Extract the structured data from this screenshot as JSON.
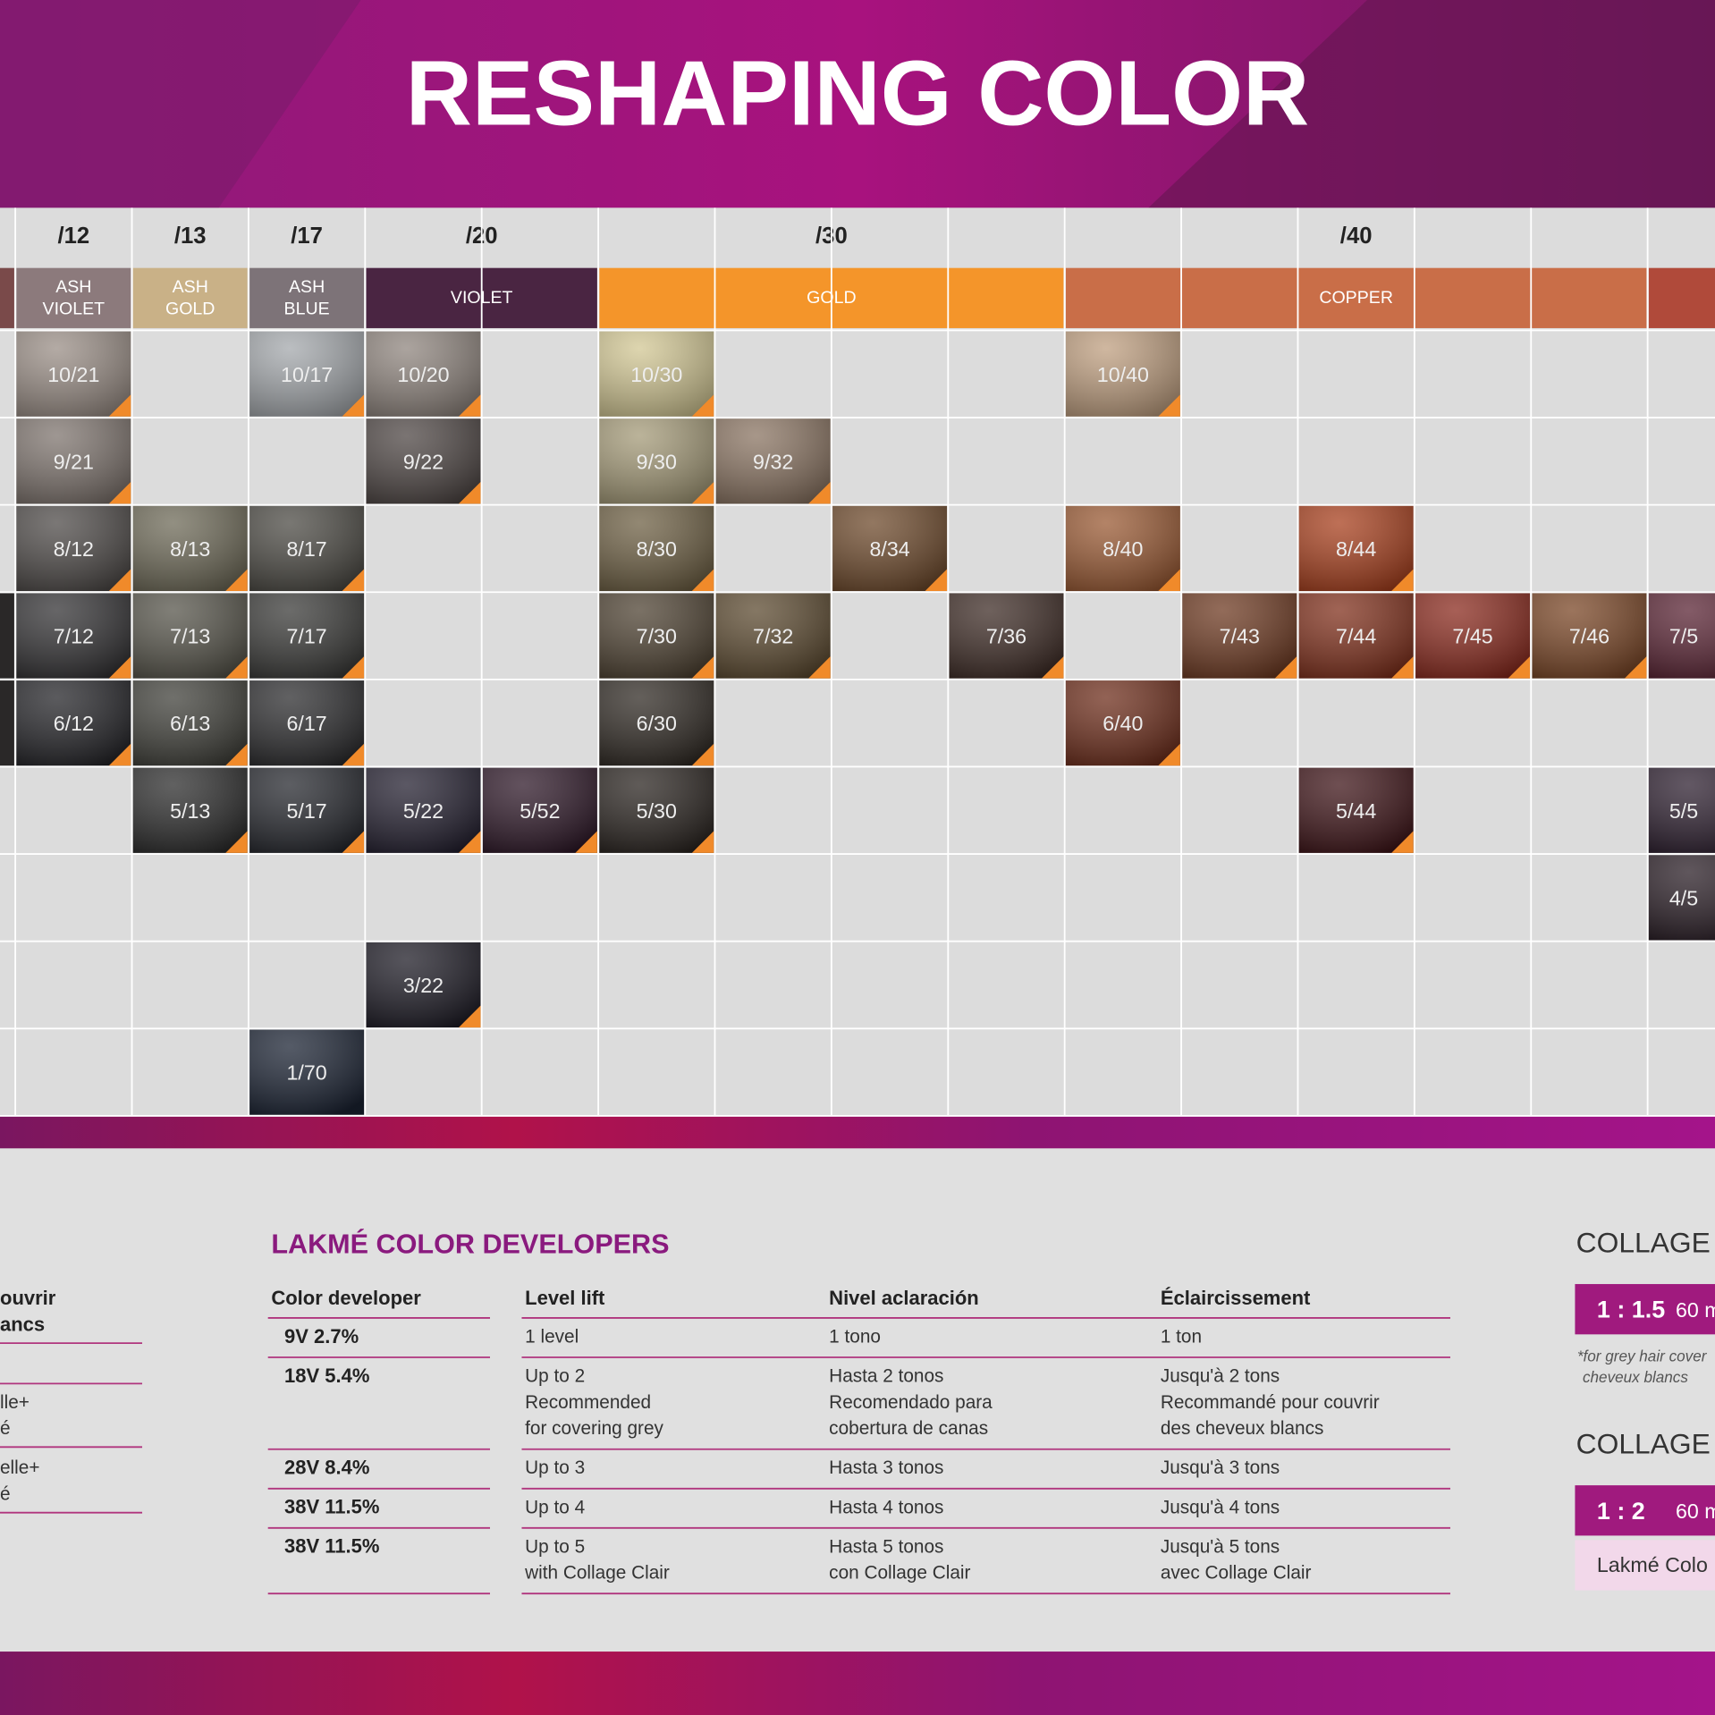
{
  "header": {
    "title": "RESHAPING COLOR"
  },
  "grid": {
    "groups": [
      {
        "code": "/12",
        "family": [
          "ASH",
          "VIOLET"
        ],
        "color": "#8c7a7c"
      },
      {
        "code": "/13",
        "family": [
          "ASH",
          "GOLD"
        ],
        "color": "#c9b187"
      },
      {
        "code": "/17",
        "family": [
          "ASH",
          "BLUE"
        ],
        "color": "#7d7378"
      },
      {
        "code": "/20",
        "family": [
          "VIOLET"
        ],
        "color": "#4a2542"
      },
      {
        "code": "/30",
        "family": [
          "GOLD"
        ],
        "color": "#f4952a"
      },
      {
        "code": "/40",
        "family": [
          "COPPER"
        ],
        "color": "#c96e48"
      }
    ],
    "rows": [
      [
        {
          "label": "10/21",
          "color": "#9a8e86"
        },
        null,
        {
          "label": "10/17",
          "color": "#a4a8ac"
        },
        {
          "label": "10/20",
          "color": "#8f857e"
        },
        null,
        {
          "label": "10/30",
          "color": "#d2c794"
        },
        null,
        null,
        null,
        {
          "label": "10/40",
          "color": "#bf9f80"
        },
        null,
        null,
        null,
        null,
        null
      ],
      [
        {
          "label": "9/21",
          "color": "#7e746e"
        },
        null,
        null,
        {
          "label": "9/22",
          "color": "#4e4644"
        },
        null,
        {
          "label": "9/30",
          "color": "#a49a78"
        },
        {
          "label": "9/32",
          "color": "#8a7462"
        },
        null,
        null,
        null,
        null,
        null,
        null,
        null,
        null
      ],
      [
        {
          "label": "8/12",
          "color": "#4e4a48"
        },
        {
          "label": "8/13",
          "color": "#6e6a58"
        },
        {
          "label": "8/17",
          "color": "#4c4a44"
        },
        null,
        null,
        {
          "label": "8/30",
          "color": "#6e6044"
        },
        null,
        {
          "label": "8/34",
          "color": "#6e4a2c"
        },
        null,
        {
          "label": "8/40",
          "color": "#9a5a34"
        },
        null,
        {
          "label": "8/44",
          "color": "#a8401e"
        },
        null,
        null,
        null
      ],
      [
        {
          "label": "7/12",
          "color": "#333234"
        },
        {
          "label": "7/13",
          "color": "#56544a"
        },
        {
          "label": "7/17",
          "color": "#3a3a38"
        },
        null,
        null,
        {
          "label": "7/30",
          "color": "#4e4232"
        },
        {
          "label": "7/32",
          "color": "#5c4a30"
        },
        null,
        {
          "label": "7/36",
          "color": "#3e2c26"
        },
        null,
        {
          "label": "7/43",
          "color": "#6e3a22"
        },
        {
          "label": "7/44",
          "color": "#80301c"
        },
        {
          "label": "7/45",
          "color": "#8a2a1e"
        },
        {
          "label": "7/46",
          "color": "#7a4626"
        },
        {
          "label": "7/5",
          "color": "#5a2434"
        }
      ],
      [
        {
          "label": "6/12",
          "color": "#242428"
        },
        {
          "label": "6/13",
          "color": "#40403a"
        },
        {
          "label": "6/17",
          "color": "#2c2c2e"
        },
        null,
        null,
        {
          "label": "6/30",
          "color": "#302a24"
        },
        null,
        null,
        null,
        {
          "label": "6/40",
          "color": "#6e2e1c"
        },
        null,
        null,
        null,
        null,
        null
      ],
      [
        null,
        {
          "label": "5/13",
          "color": "#2c2c2c"
        },
        {
          "label": "5/17",
          "color": "#26282e"
        },
        {
          "label": "5/22",
          "color": "#242030"
        },
        {
          "label": "5/52",
          "color": "#2e1828"
        },
        {
          "label": "5/30",
          "color": "#2a2420"
        },
        null,
        null,
        null,
        null,
        null,
        {
          "label": "5/44",
          "color": "#3e1418"
        },
        null,
        null,
        {
          "label": "5/5",
          "color": "#2e2030"
        }
      ],
      [
        null,
        null,
        null,
        null,
        null,
        null,
        null,
        null,
        null,
        null,
        null,
        null,
        null,
        null,
        {
          "label": "4/5",
          "color": "#2a1e26"
        }
      ],
      [
        null,
        null,
        null,
        {
          "label": "3/22",
          "color": "#1e1c26"
        },
        null,
        null,
        null,
        null,
        null,
        null,
        null,
        null,
        null,
        null,
        null
      ],
      [
        null,
        null,
        {
          "label": "1/70",
          "color": "#1c2434"
        },
        null,
        null,
        null,
        null,
        null,
        null,
        null,
        null,
        null,
        null,
        null,
        null
      ]
    ]
  },
  "developers": {
    "heading": "LAKMÉ COLOR DEVELOPERS",
    "columns": [
      "Color developer",
      "Level lift",
      "Nivel aclaración",
      "Éclaircissement"
    ],
    "rows": [
      [
        [
          "9V 2.7%"
        ],
        [
          "1 level"
        ],
        [
          "1 tono"
        ],
        [
          "1 ton"
        ]
      ],
      [
        [
          "18V 5.4%"
        ],
        [
          "Up to 2",
          "Recommended",
          "for covering grey"
        ],
        [
          "Hasta 2 tonos",
          "Recomendado para",
          "cobertura de canas"
        ],
        [
          "Jusqu'à 2 tons",
          "Recommandé pour couvrir",
          "des cheveux blancs"
        ]
      ],
      [
        [
          "28V 8.4%"
        ],
        [
          "Up to 3"
        ],
        [
          "Hasta 3 tonos"
        ],
        [
          "Jusqu'à 3 tons"
        ]
      ],
      [
        [
          "38V 11.5%"
        ],
        [
          "Up to 4"
        ],
        [
          "Hasta 4 tonos"
        ],
        [
          "Jusqu'à 4 tons"
        ]
      ],
      [
        [
          "38V 11.5%"
        ],
        [
          "Up to 5",
          "with Collage Clair"
        ],
        [
          "Hasta 5 tonos",
          "con Collage Clair"
        ],
        [
          "Jusqu'à 5 tons",
          "avec Collage Clair"
        ]
      ]
    ]
  },
  "left_panel": {
    "items": [
      [
        "ouvrir",
        "ancs"
      ],
      [
        "lle+",
        "é"
      ],
      [
        "elle+",
        "é"
      ]
    ]
  },
  "right_panel": {
    "sections": [
      {
        "title": "COLLAGE",
        "ratio": "1 : 1.5",
        "amount": "60 m",
        "note": [
          "*for grey hair cover",
          "cheveux blancs"
        ]
      },
      {
        "title": "COLLAGE",
        "ratio": "1 : 2",
        "amount": "60 m",
        "product": "Lakmé Colo"
      }
    ]
  }
}
